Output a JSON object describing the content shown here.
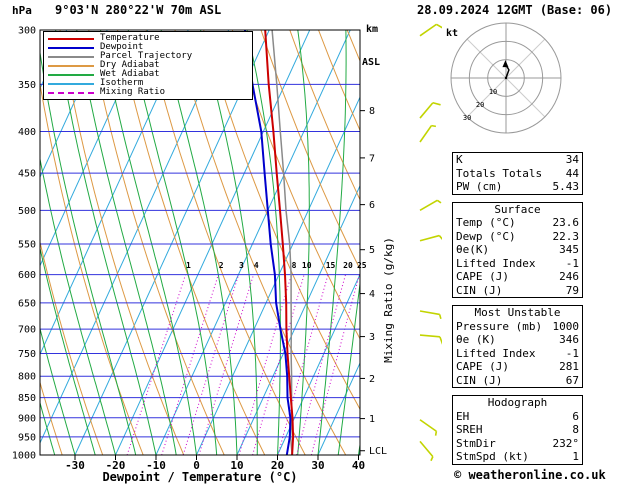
{
  "header": {
    "pressure_unit": "hPa",
    "station": "9°03'N 280°22'W 70m ASL",
    "alt_unit_line1": "km",
    "alt_unit_line2": "ASL",
    "datetime": "28.09.2024 12GMT (Base: 06)"
  },
  "footer": {
    "copyright": "© weatheronline.co.uk"
  },
  "hodograph": {
    "unit": "kt",
    "ring_labels": [
      "10",
      "20",
      "30"
    ]
  },
  "panel": {
    "indices": {
      "rows": [
        [
          "K",
          "34"
        ],
        [
          "Totals Totals",
          "44"
        ],
        [
          "PW (cm)",
          "5.43"
        ]
      ]
    },
    "surface": {
      "title": "Surface",
      "rows": [
        [
          "Temp (°C)",
          "23.6"
        ],
        [
          "Dewp (°C)",
          "22.3"
        ],
        [
          "θe(K)",
          "345"
        ],
        [
          "Lifted Index",
          "-1"
        ],
        [
          "CAPE (J)",
          "246"
        ],
        [
          "CIN (J)",
          "79"
        ]
      ]
    },
    "most_unstable": {
      "title": "Most Unstable",
      "rows": [
        [
          "Pressure (mb)",
          "1000"
        ],
        [
          "θe (K)",
          "346"
        ],
        [
          "Lifted Index",
          "-1"
        ],
        [
          "CAPE (J)",
          "281"
        ],
        [
          "CIN (J)",
          "67"
        ]
      ]
    },
    "hodograph_stats": {
      "title": "Hodograph",
      "rows": [
        [
          "EH",
          "6"
        ],
        [
          "SREH",
          "8"
        ],
        [
          "StmDir",
          "232°"
        ],
        [
          "StmSpd (kt)",
          "1"
        ]
      ]
    }
  },
  "chart_data": {
    "type": "line",
    "title": "Skew-T log-P sounding diagram",
    "xlabel": "Dewpoint / Temperature (°C)",
    "ylabel": "hPa",
    "y2label": "km ASL",
    "mixing_axis_label": "Mixing Ratio (g/kg)",
    "x_ticks": [
      -30,
      -20,
      -10,
      0,
      10,
      20,
      30,
      40
    ],
    "pressure_ticks": [
      300,
      350,
      400,
      450,
      500,
      550,
      600,
      650,
      700,
      750,
      800,
      850,
      900,
      950,
      1000
    ],
    "km_ticks": [
      8,
      7,
      6,
      5,
      4,
      3,
      2,
      1
    ],
    "lcl_label": "LCL",
    "lcl_pressure_hpa": 988,
    "altitude_pressures_hpa": {
      "1": 902,
      "2": 805,
      "3": 715,
      "4": 633,
      "5": 559,
      "6": 492,
      "7": 431,
      "8": 377
    },
    "x_range_c": [
      -40,
      40
    ],
    "y_range_hpa": [
      300,
      1000
    ],
    "y_scale": "log",
    "isotherm_step_c": 10,
    "dry_adiabat_step_k": 10,
    "wet_adiabat_step_c": 5,
    "mixing_ratio_lines_gpkg": [
      1,
      2,
      3,
      4,
      8,
      10,
      15,
      20,
      25
    ],
    "colors": {
      "pressure_line": "#3333dd",
      "isotherm": "#33aadd",
      "dry_adiabat": "#dd9944",
      "wet_adiabat": "#22aa44",
      "mixing_ratio": "#cc00cc",
      "temperature": "#cc0000",
      "dewpoint": "#0000cc",
      "parcel": "#8a8a8a",
      "wind_barb": "#c2d400",
      "border": "#000000"
    },
    "legend": [
      {
        "label": "Temperature",
        "color": "#cc0000",
        "style": "solid"
      },
      {
        "label": "Dewpoint",
        "color": "#0000cc",
        "style": "solid"
      },
      {
        "label": "Parcel Trajectory",
        "color": "#8a8a8a",
        "style": "solid"
      },
      {
        "label": "Dry Adiabat",
        "color": "#dd9944",
        "style": "solid"
      },
      {
        "label": "Wet Adiabat",
        "color": "#22aa44",
        "style": "solid"
      },
      {
        "label": "Isotherm",
        "color": "#33aadd",
        "style": "solid"
      },
      {
        "label": "Mixing Ratio",
        "color": "#cc00cc",
        "style": "dashed"
      }
    ],
    "series": [
      {
        "name": "Temperature",
        "color": "#cc0000",
        "width": 2,
        "p": [
          1000,
          950,
          900,
          850,
          800,
          750,
          700,
          650,
          600,
          550,
          500,
          450,
          400,
          350,
          300
        ],
        "t": [
          23.6,
          21.8,
          19.5,
          16.8,
          14.0,
          11.0,
          8.0,
          5.0,
          1.5,
          -2.5,
          -7.0,
          -12.0,
          -17.5,
          -24.0,
          -31.0
        ]
      },
      {
        "name": "Dewpoint",
        "color": "#0000cc",
        "width": 2,
        "p": [
          1000,
          950,
          900,
          850,
          800,
          750,
          700,
          650,
          600,
          550,
          500,
          450,
          400,
          350,
          300
        ],
        "t": [
          22.3,
          21.0,
          19.0,
          16.0,
          13.5,
          10.5,
          6.5,
          2.5,
          -1.0,
          -5.5,
          -10.0,
          -15.0,
          -20.5,
          -28.0,
          -36.0
        ]
      },
      {
        "name": "Parcel Trajectory",
        "color": "#8a8a8a",
        "width": 1.5,
        "p": [
          1000,
          950,
          900,
          850,
          800,
          750,
          700,
          650,
          600,
          550,
          500,
          450,
          400,
          350,
          300
        ],
        "t": [
          23.6,
          21.2,
          19.3,
          17.0,
          14.6,
          11.9,
          9.2,
          6.2,
          3.0,
          -0.8,
          -5.5,
          -10.3,
          -15.8,
          -22.0,
          -29.3
        ]
      }
    ],
    "wind_barbs": {
      "color": "#c2d400",
      "barbs": [
        {
          "p": 305,
          "dir": 55,
          "spd": 10
        },
        {
          "p": 385,
          "dir": 40,
          "spd": 10
        },
        {
          "p": 412,
          "dir": 35,
          "spd": 5
        },
        {
          "p": 500,
          "dir": 60,
          "spd": 5
        },
        {
          "p": 545,
          "dir": 75,
          "spd": 10
        },
        {
          "p": 665,
          "dir": 100,
          "spd": 5
        },
        {
          "p": 712,
          "dir": 95,
          "spd": 10
        },
        {
          "p": 905,
          "dir": 125,
          "spd": 5
        },
        {
          "p": 962,
          "dir": 140,
          "spd": 5
        }
      ]
    },
    "hodograph_trace_kt": [
      [
        0,
        0
      ],
      [
        1.6,
        -4.4
      ],
      [
        -0.3,
        -7.6
      ]
    ]
  }
}
